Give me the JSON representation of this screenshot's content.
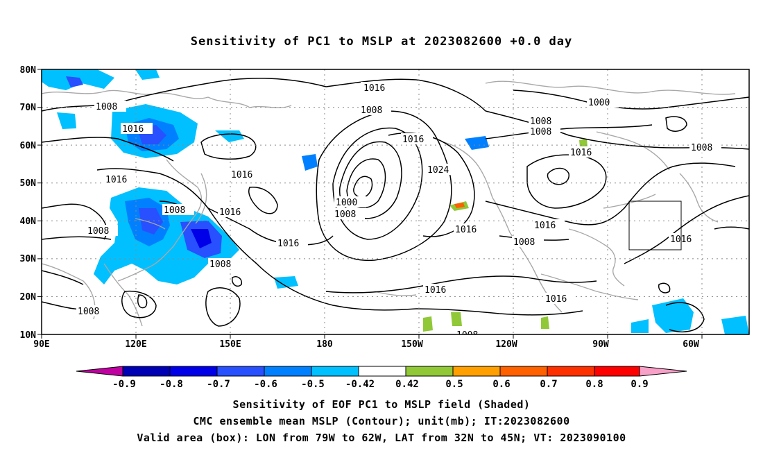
{
  "title": "Sensitivity of PC1 to MSLP at 2023082600 +0.0 day",
  "map": {
    "lon_range": [
      "90E",
      "60W (extends ~50W)"
    ],
    "lat_range": [
      "10N",
      "80N"
    ],
    "lat_labels": [
      "80N",
      "70N",
      "60N",
      "50N",
      "40N",
      "30N",
      "20N",
      "10N"
    ],
    "lon_labels": [
      "90E",
      "120E",
      "150E",
      "180",
      "150W",
      "120W",
      "90W",
      "60W"
    ],
    "grid": "dotted",
    "coastline_color": "#a8a8a8",
    "contour_color": "#000000",
    "contour_labels": [
      {
        "text": "1016",
        "id": "a"
      },
      {
        "text": "1008",
        "id": "b"
      },
      {
        "text": "1016",
        "id": "c"
      },
      {
        "text": "1016",
        "id": "d"
      },
      {
        "text": "1016",
        "id": "e"
      },
      {
        "text": "1008",
        "id": "f"
      },
      {
        "text": "1008",
        "id": "g"
      },
      {
        "text": "1016",
        "id": "h"
      },
      {
        "text": "1008",
        "id": "i"
      },
      {
        "text": "1016",
        "id": "j"
      },
      {
        "text": "1008",
        "id": "k"
      },
      {
        "text": "1008",
        "id": "l"
      },
      {
        "text": "1016",
        "id": "m"
      },
      {
        "text": "1024",
        "id": "n"
      },
      {
        "text": "1000",
        "id": "o"
      },
      {
        "text": "1008",
        "id": "p"
      },
      {
        "text": "1016",
        "id": "q"
      },
      {
        "text": "1016",
        "id": "r"
      },
      {
        "text": "1008",
        "id": "s"
      },
      {
        "text": "1000",
        "id": "t"
      },
      {
        "text": "1008",
        "id": "u"
      },
      {
        "text": "1008",
        "id": "v"
      },
      {
        "text": "1016",
        "id": "w"
      },
      {
        "text": "1008",
        "id": "x"
      },
      {
        "text": "1016",
        "id": "y"
      },
      {
        "text": "1016",
        "id": "z"
      },
      {
        "text": "1008",
        "id": "aa"
      },
      {
        "text": "1016",
        "id": "ab"
      },
      {
        "text": "1008",
        "id": "ac"
      }
    ],
    "valid_box": {
      "lon": [
        "79W",
        "62W"
      ],
      "lat": [
        "32N",
        "45N"
      ]
    }
  },
  "colorbar": {
    "labels": [
      "-0.9",
      "-0.8",
      "-0.7",
      "-0.6",
      "-0.5",
      "-0.42",
      "0.42",
      "0.5",
      "0.6",
      "0.7",
      "0.8",
      "0.9"
    ],
    "colors": [
      "#c000a0",
      "#0000b4",
      "#0000e8",
      "#2850ff",
      "#0080ff",
      "#00c0ff",
      "#ffffff",
      "#90c838",
      "#ffa000",
      "#ff6000",
      "#ff3000",
      "#ff0000",
      "#f8a0c8"
    ]
  },
  "captions": {
    "line1": "Sensitivity of EOF PC1 to MSLP field (Shaded)",
    "line2": "CMC ensemble mean MSLP (Contour); unit(mb); IT:2023082600",
    "line3": "Valid area (box): LON from 79W to 62W, LAT from 32N to 45N; VT: 2023090100"
  }
}
